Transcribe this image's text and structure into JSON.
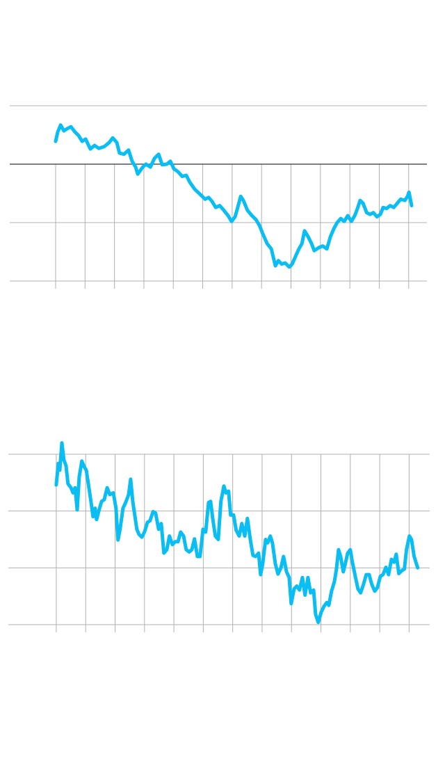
{
  "chart_data": [
    {
      "type": "line",
      "grid": true,
      "zero_line": true,
      "grid_color": "#b0b0b0",
      "zero_line_color": "#333333",
      "xlim": [
        -15.6,
        126.2
      ],
      "ylim": [
        -20,
        10
      ],
      "xticks": [
        0,
        10,
        20,
        30,
        40,
        50,
        60,
        70,
        80,
        90,
        100,
        110,
        120
      ],
      "yticks": [
        10,
        0,
        -10,
        -20
      ],
      "x": [
        0,
        0.7,
        1.7,
        2.8,
        4.0,
        5.2,
        6.6,
        7.8,
        9.0,
        10.2,
        11.8,
        13.2,
        14.7,
        16.5,
        18.2,
        19.4,
        20.8,
        21.7,
        23.2,
        24.8,
        26.0,
        27.2,
        27.9,
        29.6,
        30.7,
        32.2,
        33.6,
        35.0,
        36.2,
        37.8,
        39.0,
        40.2,
        41.6,
        43.0,
        44.4,
        45.6,
        47.3,
        49.2,
        50.8,
        52.0,
        53.2,
        54.4,
        55.8,
        57.2,
        58.6,
        59.8,
        61.0,
        61.9,
        62.9,
        63.8,
        65.2,
        66.7,
        68.1,
        69.3,
        70.4,
        71.9,
        73.3,
        74.7,
        75.7,
        76.8,
        78.0,
        79.4,
        80.4,
        81.6,
        82.7,
        83.7,
        84.6,
        85.8,
        87.0,
        87.9,
        89.4,
        90.8,
        92.2,
        93.4,
        94.6,
        95.7,
        96.9,
        98.1,
        99.3,
        100.5,
        101.7,
        102.6,
        103.5,
        104.5,
        105.7,
        106.9,
        108.0,
        109.2,
        110.4,
        111.3,
        112.5,
        113.7,
        114.9,
        116.1,
        117.3,
        118.7,
        119.6,
        120.1,
        121.0
      ],
      "series": [
        {
          "color": "#0abdf2",
          "values": [
            3.9,
            5.5,
            6.7,
            5.7,
            6.1,
            6.4,
            5.5,
            4.9,
            3.9,
            4.3,
            2.6,
            3.2,
            2.7,
            3.0,
            3.7,
            4.5,
            3.7,
            1.9,
            1.7,
            2.4,
            0.5,
            -0.5,
            -1.7,
            -0.5,
            0,
            -0.5,
            1.0,
            1.7,
            -0.1,
            0,
            0.5,
            -0.8,
            -1.3,
            -2.1,
            -1.9,
            -3.1,
            -4.3,
            -5.2,
            -6.0,
            -5.7,
            -6.4,
            -7.4,
            -7.1,
            -7.9,
            -8.8,
            -9.8,
            -9.0,
            -7.4,
            -5.5,
            -6.2,
            -7.9,
            -8.8,
            -9.5,
            -10.5,
            -11.9,
            -13.6,
            -14.5,
            -17.4,
            -16.5,
            -17.1,
            -16.9,
            -17.6,
            -17.1,
            -15.7,
            -14.5,
            -13.6,
            -11.4,
            -12.4,
            -13.6,
            -14.8,
            -14.3,
            -14.0,
            -14.5,
            -12.4,
            -11.0,
            -10.0,
            -9.3,
            -9.8,
            -8.8,
            -9.8,
            -8.8,
            -7.6,
            -6.2,
            -6.7,
            -8.3,
            -8.6,
            -8.3,
            -9.0,
            -8.6,
            -7.4,
            -7.6,
            -7.1,
            -7.4,
            -6.7,
            -6.0,
            -6.2,
            -5.5,
            -4.8,
            -7.1
          ]
        }
      ]
    },
    {
      "type": "line",
      "grid": true,
      "zero_line": false,
      "grid_color": "#b0b0b0",
      "xlim": [
        -16.3,
        127.0
      ],
      "ylim": [
        0,
        30
      ],
      "xticks": [
        0,
        10,
        20,
        30,
        40,
        50,
        60,
        70,
        80,
        90,
        100,
        110,
        120
      ],
      "yticks": [
        30,
        20,
        10,
        0
      ],
      "x": [
        0,
        0.7,
        1.2,
        1.9,
        2.6,
        3.3,
        4.0,
        5.0,
        5.7,
        6.4,
        7.1,
        7.8,
        8.7,
        9.5,
        10.2,
        11.1,
        11.8,
        12.5,
        13.2,
        13.7,
        14.4,
        15.4,
        16.3,
        17.3,
        18.2,
        19.4,
        20.3,
        21.0,
        21.7,
        22.7,
        23.6,
        24.6,
        25.3,
        26.0,
        26.7,
        27.4,
        28.1,
        29.1,
        30.0,
        31.0,
        31.9,
        32.9,
        33.8,
        34.8,
        35.7,
        36.6,
        37.6,
        38.5,
        39.5,
        40.4,
        41.4,
        42.3,
        43.3,
        44.2,
        45.2,
        46.1,
        47.0,
        48.0,
        48.9,
        49.9,
        50.8,
        51.8,
        52.5,
        53.2,
        54.1,
        55.1,
        56.0,
        57.0,
        57.7,
        58.6,
        59.3,
        60.3,
        61.2,
        62.2,
        63.1,
        64.1,
        65.0,
        66.0,
        66.9,
        67.8,
        68.8,
        69.5,
        70.2,
        71.2,
        71.9,
        72.8,
        73.5,
        74.5,
        75.4,
        76.4,
        77.3,
        78.3,
        79.2,
        79.9,
        80.9,
        81.8,
        82.7,
        83.7,
        84.6,
        85.6,
        86.5,
        87.5,
        88.2,
        89.1,
        90.1,
        91.0,
        92.0,
        92.7,
        93.6,
        94.6,
        95.3,
        96.0,
        96.7,
        97.6,
        98.3,
        99.1,
        100.0,
        100.7,
        101.7,
        102.6,
        103.5,
        104.5,
        105.4,
        106.4,
        107.3,
        108.3,
        109.2,
        110.2,
        111.1,
        112.1,
        113.0,
        114.0,
        114.9,
        115.6,
        116.5,
        117.5,
        118.4,
        119.1,
        120.1,
        120.8,
        121.7,
        122.9
      ],
      "series": [
        {
          "color": "#0abdf2",
          "values": [
            24.6,
            28.4,
            27.2,
            32.0,
            29.0,
            28.0,
            24.8,
            24.1,
            23.2,
            24.1,
            20.2,
            26.0,
            28.8,
            27.8,
            27.2,
            24.1,
            21.7,
            19.0,
            20.5,
            18.5,
            19.9,
            21.7,
            22.0,
            24.1,
            22.9,
            23.2,
            20.5,
            14.9,
            16.8,
            20.5,
            21.5,
            22.9,
            25.6,
            21.7,
            19.3,
            16.8,
            15.9,
            15.4,
            16.3,
            18.0,
            18.3,
            19.9,
            19.6,
            16.8,
            17.8,
            12.6,
            13.2,
            15.6,
            14.1,
            14.6,
            14.6,
            16.3,
            15.6,
            13.2,
            12.8,
            13.2,
            15.1,
            12.0,
            12.0,
            16.8,
            16.3,
            21.5,
            21.7,
            18.7,
            15.6,
            15.0,
            21.7,
            24.4,
            23.2,
            23.5,
            19.3,
            19.3,
            16.6,
            15.6,
            17.8,
            15.6,
            18.7,
            15.0,
            12.2,
            12.0,
            12.6,
            8.8,
            10.7,
            15.0,
            14.4,
            15.6,
            14.4,
            10.7,
            8.9,
            10.0,
            12.0,
            9.3,
            8.3,
            3.7,
            6.3,
            6.8,
            6.1,
            8.3,
            5.2,
            8.3,
            5.6,
            6.1,
            1.8,
            0.4,
            2.2,
            3.2,
            3.9,
            3.4,
            5.9,
            7.6,
            9.8,
            13.2,
            12.0,
            9.3,
            10.7,
            12.6,
            13.2,
            11.0,
            8.5,
            6.3,
            5.6,
            7.1,
            8.8,
            8.8,
            7.1,
            5.9,
            6.5,
            8.5,
            8.8,
            10.1,
            8.8,
            11.5,
            11.0,
            12.4,
            9.0,
            9.5,
            9.8,
            13.2,
            15.6,
            15.0,
            12.0,
            10.0
          ]
        }
      ]
    }
  ]
}
